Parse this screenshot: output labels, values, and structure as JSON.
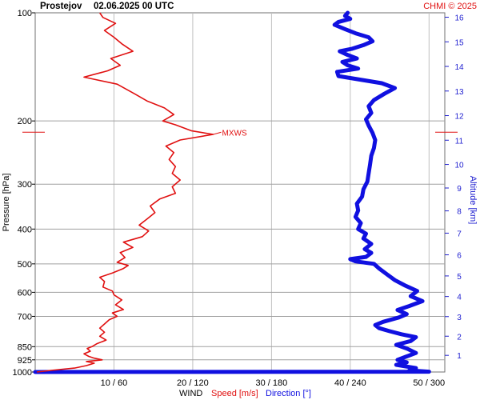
{
  "header": {
    "station": "Prostejov",
    "datetime": "02.06.2025 00 UTC",
    "copyright": "CHMI © 2025"
  },
  "chart_data": {
    "type": "line",
    "y_left_label": "Pressure [hPa]",
    "y_left_scale": "log",
    "y_left_ticks": [
      100,
      200,
      300,
      400,
      500,
      600,
      700,
      850,
      925,
      1000
    ],
    "y_right_label": "Altitude [km]",
    "y_right_ticks": [
      1,
      2,
      3,
      4,
      5,
      6,
      7,
      8,
      9,
      10,
      11,
      12,
      13,
      14,
      15,
      16
    ],
    "x_ticks": [
      "10 / 60",
      "20 / 120",
      "30 / 180",
      "40 / 240",
      "50 / 300"
    ],
    "x_footer": {
      "wind": "WIND",
      "speed": "Speed [m/s]",
      "direction": "Direction [°]"
    },
    "grid": true,
    "max_wind_label": "MXWS",
    "max_wind_pressure": 215,
    "colors": {
      "speed": "#e01010",
      "direction": "#1010e0",
      "right_axis": "#2020d0",
      "copyright": "#e01010",
      "grid": "#c0c0c0"
    },
    "series": [
      {
        "name": "Speed [m/s]",
        "x_unit": "m/s",
        "points": [
          [
            1000,
            0.2
          ],
          [
            990,
            2
          ],
          [
            975,
            5
          ],
          [
            960,
            6.5
          ],
          [
            945,
            7.5
          ],
          [
            935,
            6.5
          ],
          [
            925,
            8.5
          ],
          [
            915,
            7.5
          ],
          [
            905,
            6.8
          ],
          [
            890,
            6.2
          ],
          [
            875,
            7
          ],
          [
            860,
            6.6
          ],
          [
            850,
            7.2
          ],
          [
            835,
            7.8
          ],
          [
            815,
            9
          ],
          [
            795,
            8.2
          ],
          [
            775,
            8.8
          ],
          [
            755,
            8.2
          ],
          [
            735,
            8.8
          ],
          [
            715,
            9.4
          ],
          [
            700,
            10.4
          ],
          [
            685,
            9.8
          ],
          [
            670,
            11.2
          ],
          [
            650,
            10.2
          ],
          [
            630,
            11
          ],
          [
            610,
            10
          ],
          [
            595,
            9.8
          ],
          [
            580,
            8.6
          ],
          [
            560,
            8.8
          ],
          [
            545,
            8.2
          ],
          [
            530,
            9.8
          ],
          [
            515,
            11.2
          ],
          [
            505,
            11.8
          ],
          [
            495,
            10.4
          ],
          [
            480,
            11.4
          ],
          [
            465,
            10.8
          ],
          [
            450,
            12.4
          ],
          [
            435,
            11.2
          ],
          [
            420,
            13.6
          ],
          [
            405,
            14.4
          ],
          [
            390,
            13.2
          ],
          [
            375,
            14.2
          ],
          [
            360,
            15.2
          ],
          [
            345,
            14.6
          ],
          [
            330,
            15.8
          ],
          [
            318,
            17.8
          ],
          [
            305,
            17.4
          ],
          [
            292,
            18.4
          ],
          [
            280,
            17.4
          ],
          [
            268,
            17.8
          ],
          [
            256,
            17
          ],
          [
            245,
            17.6
          ],
          [
            235,
            16.6
          ],
          [
            226,
            18.4
          ],
          [
            218,
            22.6
          ],
          [
            213,
            19.8
          ],
          [
            205,
            17.8
          ],
          [
            200,
            16.2
          ],
          [
            192,
            17.6
          ],
          [
            184,
            16.4
          ],
          [
            176,
            14.2
          ],
          [
            168,
            12.6
          ],
          [
            158,
            10.4
          ],
          [
            151,
            6.2
          ],
          [
            145,
            9.2
          ],
          [
            140,
            10.8
          ],
          [
            134,
            9.6
          ],
          [
            128,
            12.4
          ],
          [
            122,
            11
          ],
          [
            117,
            10
          ],
          [
            112,
            8.8
          ],
          [
            107,
            10.2
          ],
          [
            103,
            8.6
          ],
          [
            100,
            8.2
          ]
        ]
      },
      {
        "name": "Direction [°]",
        "x_unit": "deg",
        "points": [
          [
            1000,
            0
          ],
          [
            998,
            300
          ],
          [
            990,
            285
          ],
          [
            975,
            290
          ],
          [
            955,
            275
          ],
          [
            940,
            283
          ],
          [
            925,
            276
          ],
          [
            905,
            283
          ],
          [
            885,
            290
          ],
          [
            860,
            283
          ],
          [
            840,
            275
          ],
          [
            820,
            286
          ],
          [
            800,
            290
          ],
          [
            785,
            279
          ],
          [
            770,
            270
          ],
          [
            755,
            262
          ],
          [
            740,
            259
          ],
          [
            725,
            265
          ],
          [
            705,
            277
          ],
          [
            690,
            283
          ],
          [
            672,
            276
          ],
          [
            655,
            285
          ],
          [
            635,
            295
          ],
          [
            615,
            286
          ],
          [
            595,
            291
          ],
          [
            575,
            282
          ],
          [
            555,
            274
          ],
          [
            535,
            268
          ],
          [
            515,
            262
          ],
          [
            500,
            258
          ],
          [
            492,
            244
          ],
          [
            485,
            240
          ],
          [
            478,
            252
          ],
          [
            466,
            256
          ],
          [
            455,
            251
          ],
          [
            440,
            256
          ],
          [
            425,
            250
          ],
          [
            412,
            252
          ],
          [
            400,
            246
          ],
          [
            385,
            248
          ],
          [
            370,
            244
          ],
          [
            355,
            246
          ],
          [
            340,
            245
          ],
          [
            325,
            249
          ],
          [
            310,
            250
          ],
          [
            295,
            253
          ],
          [
            280,
            254
          ],
          [
            265,
            255
          ],
          [
            250,
            256
          ],
          [
            238,
            258
          ],
          [
            226,
            259
          ],
          [
            216,
            257
          ],
          [
            206,
            254
          ],
          [
            198,
            252
          ],
          [
            190,
            256
          ],
          [
            182,
            254
          ],
          [
            175,
            258
          ],
          [
            168,
            266
          ],
          [
            162,
            274
          ],
          [
            157,
            264
          ],
          [
            153,
            245
          ],
          [
            150,
            231
          ],
          [
            146,
            230
          ],
          [
            143,
            246
          ],
          [
            140,
            238
          ],
          [
            137,
            234
          ],
          [
            134,
            245
          ],
          [
            131,
            238
          ],
          [
            128,
            232
          ],
          [
            126,
            241
          ],
          [
            123,
            250
          ],
          [
            120,
            257
          ],
          [
            117,
            254
          ],
          [
            114,
            244
          ],
          [
            111,
            236
          ],
          [
            108,
            228
          ],
          [
            106,
            231
          ],
          [
            104,
            240
          ],
          [
            102,
            236
          ],
          [
            100,
            238
          ]
        ]
      }
    ]
  }
}
